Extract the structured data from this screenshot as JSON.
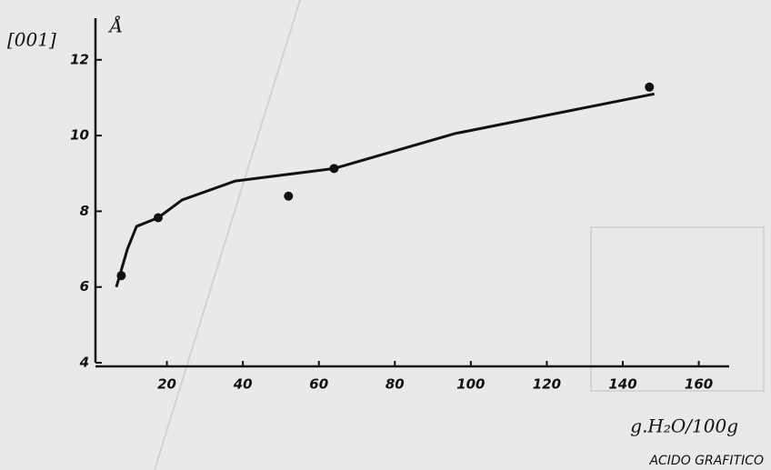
{
  "chart_data": {
    "type": "scatter",
    "title": "[001]",
    "y_label": "Å",
    "x_label": "g.H₂O/100g",
    "caption": "ACIDO GRAFITICO",
    "xlim": [
      0,
      168
    ],
    "xticks": [
      20,
      40,
      60,
      80,
      100,
      120,
      140,
      160
    ],
    "ylim": [
      4,
      13.1
    ],
    "yticks": [
      4,
      6,
      8,
      10,
      12
    ],
    "series": [
      {
        "type": "scatter",
        "color": "#111111",
        "x": [
          8,
          17.7,
          52,
          64,
          147
        ],
        "values": [
          6.3,
          7.83,
          8.4,
          9.13,
          11.28
        ]
      },
      {
        "type": "line",
        "color": "#111111",
        "x": [
          6.7,
          9.6,
          12,
          17.7,
          24,
          38,
          64,
          95.7,
          148.3
        ],
        "values": [
          6.0,
          7.0,
          7.6,
          7.83,
          8.3,
          8.8,
          9.13,
          10.05,
          11.1
        ]
      }
    ]
  }
}
